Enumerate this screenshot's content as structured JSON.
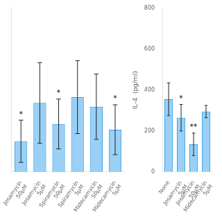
{
  "chart_data": [
    {
      "type": "bar",
      "categories": [
        "Josamycin\n50μM",
        "Josamycin\n5μM",
        "Spiramycin\n50μM",
        "Spiramycin\n5μM",
        "Midecamycin\n50μM",
        "Midecamycin\n5μM"
      ],
      "values": [
        430,
        530,
        475,
        545,
        520,
        460
      ],
      "errors": [
        55,
        105,
        65,
        95,
        85,
        65
      ],
      "ylim": [
        350,
        780
      ],
      "tick_labels": "x",
      "grid": false,
      "annotations": [
        {
          "text": "*",
          "category": "Josamycin\n50μM"
        },
        {
          "text": "*",
          "category": "Spiramycin\n50μM"
        },
        {
          "text": "*",
          "category": "Midecamycin\n5μM"
        }
      ]
    },
    {
      "type": "bar",
      "categories": [
        "None",
        "Josamycin\n5μM",
        "Josamycin\n50μM",
        "Midecamycin\n5μM"
      ],
      "values": [
        355,
        265,
        135,
        295
      ],
      "errors": [
        80,
        65,
        55,
        30
      ],
      "ylim": [
        0,
        800
      ],
      "yticks": [
        0,
        200,
        400,
        600,
        800
      ],
      "ylabel": "IL-4  (pg/ml)",
      "grid": false,
      "annotations": [
        {
          "text": "*",
          "category": "Josamycin\n5μM"
        },
        {
          "text": "**",
          "category": "Josamycin\n50μM"
        }
      ]
    }
  ]
}
